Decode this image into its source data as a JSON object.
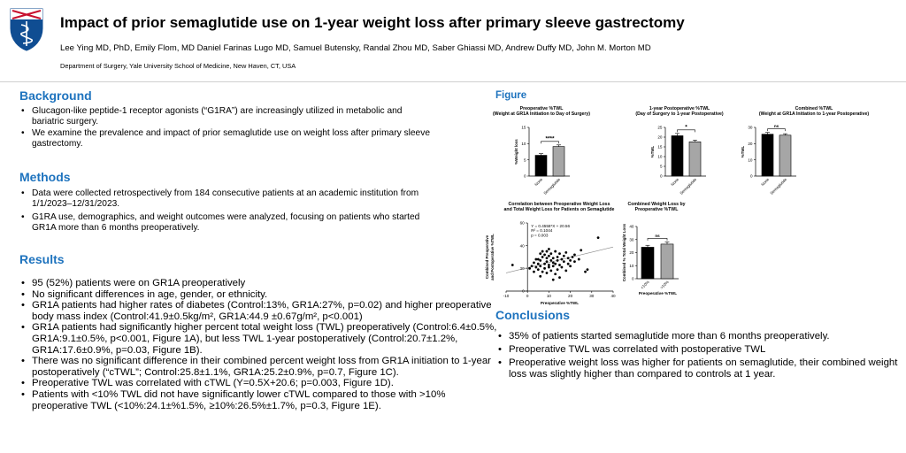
{
  "header": {
    "title": "Impact of prior semaglutide use on 1-year weight loss after primary sleeve gastrectomy",
    "authors": "Lee Ying MD, PhD, Emily Flom, MD Daniel Farinas Lugo MD, Samuel Butensky, Randal Zhou MD, Saber Ghiassi MD, Andrew Duffy MD, John M. Morton MD",
    "department": "Department of Surgery, Yale University School of Medicine, New Haven, CT, USA"
  },
  "background": {
    "heading": "Background",
    "items": [
      "Glucagon-like peptide-1 receptor agonists (“G1RA”) are increasingly utilized in metabolic and bariatric surgery.",
      "We examine the prevalence and impact of prior semaglutide use on weight loss after primary sleeve gastrectomy."
    ]
  },
  "methods": {
    "heading": "Methods",
    "items": [
      "Data were collected retrospectively from 184 consecutive patients at an academic institution from 1/1/2023–12/31/2023.",
      "G1RA use, demographics, and weight outcomes were analyzed, focusing on patients who started GR1A more than 6 months preoperatively."
    ]
  },
  "results": {
    "heading": "Results",
    "items": [
      "95 (52%) patients were on GR1A preoperatively",
      "No significant differences in age, gender, or ethnicity.",
      "GR1A patients had higher rates of diabetes (Control:13%, GR1A:27%, p=0.02) and higher preoperative body mass index (Control:41.9±0.5kg/m², GR1A:44.9 ±0.67g/m², p<0.001)",
      "GR1A patients had significantly higher percent total weight loss (TWL) preoperatively (Control:6.4±0.5%, GR1A:9.1±0.5%, p<0.001, Figure 1A), but less TWL 1-year postoperatively (Control:20.7±1.2%, GR1A:17.6±0.9%, p=0.03, Figure 1B).",
      "There was no significant difference in their combined percent weight loss from GR1A initiation to 1-year postoperatively (“cTWL”; Control:25.8±1.1%, GR1A:25.2±0.9%, p=0.7, Figure 1C).",
      "Preoperative TWL was correlated with cTWL (Y=0.5X+20.6; p=0.003, Figure 1D).",
      "Patients with <10% TWL did not have significantly lower cTWL compared to those with >10% preoperative TWL (<10%:24.1±%1.5%, ≥10%:26.5%±1.7%, p=0.3, Figure 1E)."
    ]
  },
  "figure": {
    "heading": "Figure"
  },
  "conclusions": {
    "heading": "Conclusions",
    "items": [
      "35% of patients started semaglutide more than 6 months preoperatively.",
      "Preoperative TWL was correlated with postoperative TWL",
      "Preoperative weight loss was higher for patients on semaglutide, their combined weight loss was slightly higher than compared to controls at 1 year."
    ]
  },
  "colors": {
    "accent": "#1e73be",
    "bar_dark": "#000000",
    "bar_light": "#a6a6a6",
    "logo": "#0f4d92"
  },
  "chart_data": [
    {
      "type": "bar",
      "panel": "A",
      "title": "Preoperative %TWL",
      "subtitle": "(Weight at GR1A Initiation to Day of Surgery)",
      "ylabel": "%Weight loss",
      "categories": [
        "None",
        "Semaglutide"
      ],
      "values": [
        6.4,
        9.1
      ],
      "errors": [
        0.5,
        0.5
      ],
      "ylim": [
        0,
        15
      ],
      "yticks": [
        "0",
        "5",
        "10",
        "15"
      ],
      "significance": "****"
    },
    {
      "type": "bar",
      "panel": "B",
      "title": "1-year Postoperative %TWL",
      "subtitle": "(Day of Surgery to 1-year Postoperative)",
      "ylabel": "%TWL",
      "categories": [
        "None",
        "Semaglutide"
      ],
      "values": [
        20.7,
        17.6
      ],
      "errors": [
        1.2,
        0.9
      ],
      "ylim": [
        0,
        25
      ],
      "yticks": [
        "0",
        "5",
        "10",
        "15",
        "20",
        "25"
      ],
      "significance": "*"
    },
    {
      "type": "bar",
      "panel": "C",
      "title": "Combined %TWL",
      "subtitle": "(Weight at GR1A Initiation to 1-year Postoperative)",
      "ylabel": "%TWL",
      "categories": [
        "None",
        "Semaglutide"
      ],
      "values": [
        25.8,
        25.2
      ],
      "errors": [
        1.1,
        0.9
      ],
      "ylim": [
        0,
        30
      ],
      "yticks": [
        "0",
        "10",
        "20",
        "30"
      ],
      "significance": "ns"
    },
    {
      "type": "scatter",
      "panel": "D",
      "title": "Correlation between Preoperative Weight Loss",
      "subtitle": "and Total Weight Loss for Patients on Semaglutide",
      "xlabel": "Preoperative %TWL",
      "ylabel": "Combined Preoperative and Postoperative %TWL",
      "xlim": [
        -10,
        40
      ],
      "ylim": [
        0,
        60
      ],
      "xticks": [
        "-10",
        "0",
        "10",
        "20",
        "30",
        "40"
      ],
      "yticks": [
        "0",
        "20",
        "40",
        "60"
      ],
      "annotation": [
        "Y = 0.4558*X + 20.56",
        "R² = 0.1044",
        "p = 0.003"
      ],
      "regression": {
        "slope": 0.4558,
        "intercept": 20.56
      },
      "points": [
        [
          -7,
          23
        ],
        [
          1,
          20
        ],
        [
          2,
          22
        ],
        [
          3,
          17
        ],
        [
          3,
          25
        ],
        [
          4,
          21
        ],
        [
          5,
          19
        ],
        [
          5,
          24
        ],
        [
          5,
          28
        ],
        [
          6,
          13
        ],
        [
          6,
          22
        ],
        [
          6,
          27
        ],
        [
          7,
          17
        ],
        [
          7,
          30
        ],
        [
          7,
          35
        ],
        [
          8,
          20
        ],
        [
          8,
          24
        ],
        [
          8,
          32
        ],
        [
          9,
          16
        ],
        [
          9,
          26
        ],
        [
          9,
          29
        ],
        [
          10,
          21
        ],
        [
          10,
          23
        ],
        [
          10,
          31
        ],
        [
          10,
          37
        ],
        [
          11,
          18
        ],
        [
          11,
          27
        ],
        [
          11,
          33
        ],
        [
          12,
          10
        ],
        [
          12,
          22
        ],
        [
          12,
          25
        ],
        [
          12,
          29
        ],
        [
          13,
          15
        ],
        [
          13,
          24
        ],
        [
          13,
          35
        ],
        [
          14,
          19
        ],
        [
          14,
          27
        ],
        [
          14,
          30
        ],
        [
          15,
          23
        ],
        [
          15,
          33
        ],
        [
          15,
          12
        ],
        [
          16,
          21
        ],
        [
          16,
          28
        ],
        [
          17,
          26
        ],
        [
          17,
          31
        ],
        [
          18,
          18
        ],
        [
          18,
          34
        ],
        [
          19,
          24
        ],
        [
          19,
          29
        ],
        [
          20,
          27
        ],
        [
          20,
          22
        ],
        [
          21,
          30
        ],
        [
          22,
          26
        ],
        [
          22,
          32
        ],
        [
          24,
          28
        ],
        [
          25,
          36
        ],
        [
          27,
          17
        ],
        [
          28,
          19
        ],
        [
          33,
          47
        ],
        [
          9,
          35
        ],
        [
          4,
          28
        ],
        [
          6,
          33
        ]
      ]
    },
    {
      "type": "bar",
      "panel": "E",
      "title": "Combined Weight Loss by",
      "subtitle": "Preoperative %TWL",
      "xlabel": "Preoperative %TWL",
      "ylabel": "Combined % Total Weight Loss",
      "categories": [
        "<10%",
        ">10%"
      ],
      "values": [
        24.1,
        26.5
      ],
      "errors": [
        1.5,
        1.7
      ],
      "ylim": [
        0,
        40
      ],
      "yticks": [
        "0",
        "10",
        "20",
        "30",
        "40"
      ],
      "significance": "ns"
    }
  ]
}
